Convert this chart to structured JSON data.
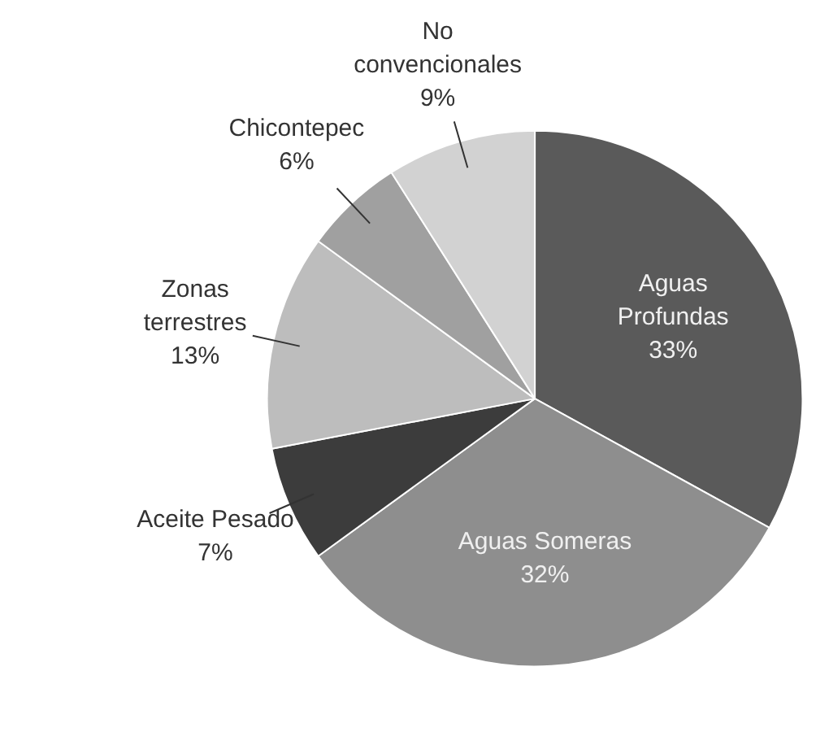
{
  "chart_data": {
    "type": "pie",
    "categories": [
      "Aguas\nProfundas",
      "Aguas Someras",
      "Aceite Pesado",
      "Zonas\nterrestres",
      "Chicontepec",
      "No\nconvencionales"
    ],
    "values": [
      33,
      32,
      7,
      13,
      6,
      9
    ],
    "value_labels": [
      "33%",
      "32%",
      "7%",
      "13%",
      "6%",
      "9%"
    ],
    "colors": [
      "#5a5a5a",
      "#8e8e8e",
      "#3c3c3c",
      "#bdbdbd",
      "#a0a0a0",
      "#d2d2d2"
    ]
  }
}
